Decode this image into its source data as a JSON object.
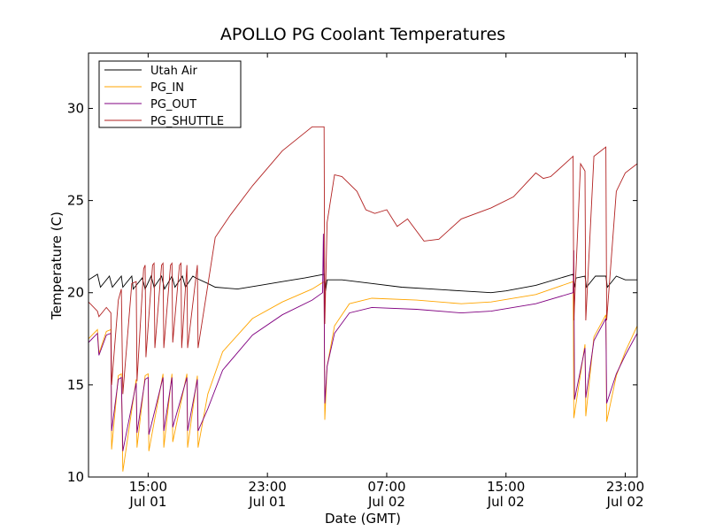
{
  "chart_data": {
    "type": "line",
    "title": "APOLLO PG Coolant Temperatures",
    "xlabel": "Date (GMT)",
    "ylabel": "Temperature (C)",
    "x_unit": "hours since Jul 01 00:00 GMT",
    "xlim": [
      11.0,
      47.8
    ],
    "ylim": [
      10,
      33
    ],
    "yticks": [
      10,
      15,
      20,
      25,
      30
    ],
    "xticks": [
      {
        "value": 15,
        "line1": "15:00",
        "line2": "Jul 01"
      },
      {
        "value": 23,
        "line1": "23:00",
        "line2": "Jul 01"
      },
      {
        "value": 31,
        "line1": "07:00",
        "line2": "Jul 02"
      },
      {
        "value": 39,
        "line1": "15:00",
        "line2": "Jul 02"
      },
      {
        "value": 47,
        "line1": "23:00",
        "line2": "Jul 02"
      }
    ],
    "legend_position": "top-left",
    "series": [
      {
        "name": "Utah Air",
        "color": "#000000",
        "x": [
          11.0,
          11.6,
          11.8,
          12.4,
          12.6,
          13.2,
          13.3,
          13.9,
          14.0,
          14.6,
          14.8,
          15.2,
          15.4,
          15.9,
          16.1,
          16.6,
          16.8,
          17.3,
          17.5,
          18.0,
          18.2,
          19.0,
          19.5,
          21.0,
          22.5,
          24.0,
          25.5,
          26.8,
          26.9,
          27.0,
          28.0,
          30.0,
          32.0,
          34.0,
          36.0,
          38.0,
          39.0,
          41.0,
          43.5,
          43.6,
          43.7,
          44.3,
          44.4,
          45.0,
          45.7,
          45.8,
          46.4,
          47.0,
          47.8
        ],
        "y": [
          20.7,
          21.0,
          20.3,
          20.9,
          20.3,
          20.9,
          20.3,
          20.9,
          20.2,
          20.8,
          20.2,
          20.9,
          20.3,
          20.9,
          20.2,
          20.9,
          20.3,
          20.9,
          20.3,
          20.9,
          20.8,
          20.5,
          20.3,
          20.2,
          20.4,
          20.6,
          20.8,
          21.0,
          20.1,
          20.7,
          20.7,
          20.5,
          20.3,
          20.2,
          20.1,
          20.0,
          20.1,
          20.4,
          21.0,
          20.3,
          20.8,
          20.9,
          20.3,
          20.9,
          20.9,
          20.3,
          20.9,
          20.7,
          20.7
        ]
      },
      {
        "name": "PG_IN",
        "color": "#ffa500",
        "x": [
          11.0,
          11.6,
          11.7,
          12.2,
          12.5,
          12.55,
          13.0,
          13.2,
          13.3,
          14.2,
          14.25,
          14.8,
          15.0,
          15.05,
          16.0,
          16.05,
          16.6,
          16.65,
          17.6,
          17.65,
          18.3,
          18.35,
          19.0,
          20.0,
          22.0,
          24.0,
          26.0,
          26.8,
          26.85,
          27.0,
          27.5,
          28.5,
          30.0,
          33.0,
          36.0,
          38.0,
          41.0,
          43.5,
          43.55,
          44.3,
          44.35,
          44.9,
          45.7,
          45.75,
          46.4,
          47.0,
          47.8
        ],
        "y": [
          17.5,
          18.0,
          16.7,
          17.9,
          18.0,
          11.5,
          15.5,
          15.6,
          10.3,
          15.3,
          11.6,
          15.5,
          15.6,
          11.4,
          15.6,
          11.6,
          15.6,
          11.9,
          15.6,
          11.6,
          15.5,
          11.6,
          14.5,
          16.8,
          18.6,
          19.5,
          20.2,
          20.6,
          13.1,
          16.0,
          18.2,
          19.4,
          19.7,
          19.6,
          19.4,
          19.5,
          19.9,
          20.6,
          13.2,
          17.2,
          13.3,
          17.6,
          18.8,
          13.0,
          15.5,
          16.8,
          18.2
        ]
      },
      {
        "name": "PG_OUT",
        "color": "#800080",
        "x": [
          11.0,
          11.6,
          11.7,
          12.2,
          12.5,
          12.55,
          13.0,
          13.2,
          13.3,
          14.2,
          14.25,
          14.8,
          15.0,
          15.05,
          16.0,
          16.05,
          16.6,
          16.65,
          17.6,
          17.65,
          18.3,
          18.35,
          19.0,
          20.0,
          22.0,
          24.0,
          26.0,
          26.7,
          26.75,
          26.8,
          26.85,
          27.0,
          27.5,
          28.5,
          30.0,
          33.0,
          36.0,
          38.0,
          41.0,
          43.5,
          43.55,
          43.6,
          44.3,
          44.35,
          44.9,
          45.7,
          45.75,
          46.4,
          47.0,
          47.8
        ],
        "y": [
          17.3,
          17.8,
          16.6,
          17.7,
          17.8,
          12.5,
          15.3,
          15.4,
          11.4,
          15.1,
          12.4,
          15.3,
          15.4,
          12.3,
          15.4,
          12.5,
          15.4,
          12.7,
          15.4,
          12.5,
          15.3,
          12.5,
          13.7,
          15.8,
          17.7,
          18.8,
          19.6,
          20.0,
          23.2,
          19.9,
          14.0,
          16.0,
          17.8,
          18.9,
          19.2,
          19.1,
          18.9,
          19.0,
          19.4,
          20.0,
          22.3,
          14.2,
          17.0,
          14.3,
          17.4,
          18.6,
          14.0,
          15.6,
          16.6,
          17.8
        ]
      },
      {
        "name": "PG_SHUTTLE",
        "color": "#b22222",
        "x": [
          11.0,
          11.6,
          11.7,
          12.2,
          12.5,
          12.55,
          13.0,
          13.2,
          13.3,
          13.9,
          14.2,
          14.25,
          14.7,
          14.8,
          14.85,
          15.3,
          15.4,
          15.45,
          15.9,
          16.0,
          16.05,
          16.5,
          16.6,
          16.65,
          17.1,
          17.2,
          17.25,
          17.6,
          17.65,
          18.3,
          18.35,
          19.0,
          19.5,
          20.5,
          22.0,
          24.0,
          26.0,
          26.8,
          26.85,
          27.0,
          27.5,
          28.0,
          29.0,
          29.6,
          30.2,
          31.0,
          31.7,
          32.4,
          33.5,
          34.5,
          36.0,
          38.0,
          39.5,
          41.0,
          41.5,
          42.0,
          43.5,
          43.55,
          44.0,
          44.3,
          44.35,
          44.9,
          45.7,
          45.75,
          46.4,
          47.0,
          47.8
        ],
        "y": [
          19.5,
          19.0,
          18.7,
          19.2,
          18.9,
          15.0,
          19.6,
          20.2,
          14.5,
          20.5,
          20.6,
          15.2,
          21.3,
          21.5,
          16.5,
          21.5,
          21.6,
          17.0,
          21.5,
          21.6,
          17.0,
          21.5,
          21.6,
          17.3,
          21.5,
          21.6,
          17.0,
          21.5,
          17.0,
          21.5,
          17.0,
          20.4,
          23.0,
          24.2,
          25.8,
          27.7,
          29.0,
          29.0,
          18.3,
          23.8,
          26.4,
          26.3,
          25.5,
          24.5,
          24.3,
          24.5,
          23.6,
          24.0,
          22.8,
          22.9,
          24.0,
          24.6,
          25.2,
          26.5,
          26.2,
          26.3,
          27.4,
          18.5,
          27.0,
          26.6,
          18.5,
          27.4,
          27.9,
          18.5,
          25.5,
          26.5,
          27.0
        ]
      }
    ]
  }
}
